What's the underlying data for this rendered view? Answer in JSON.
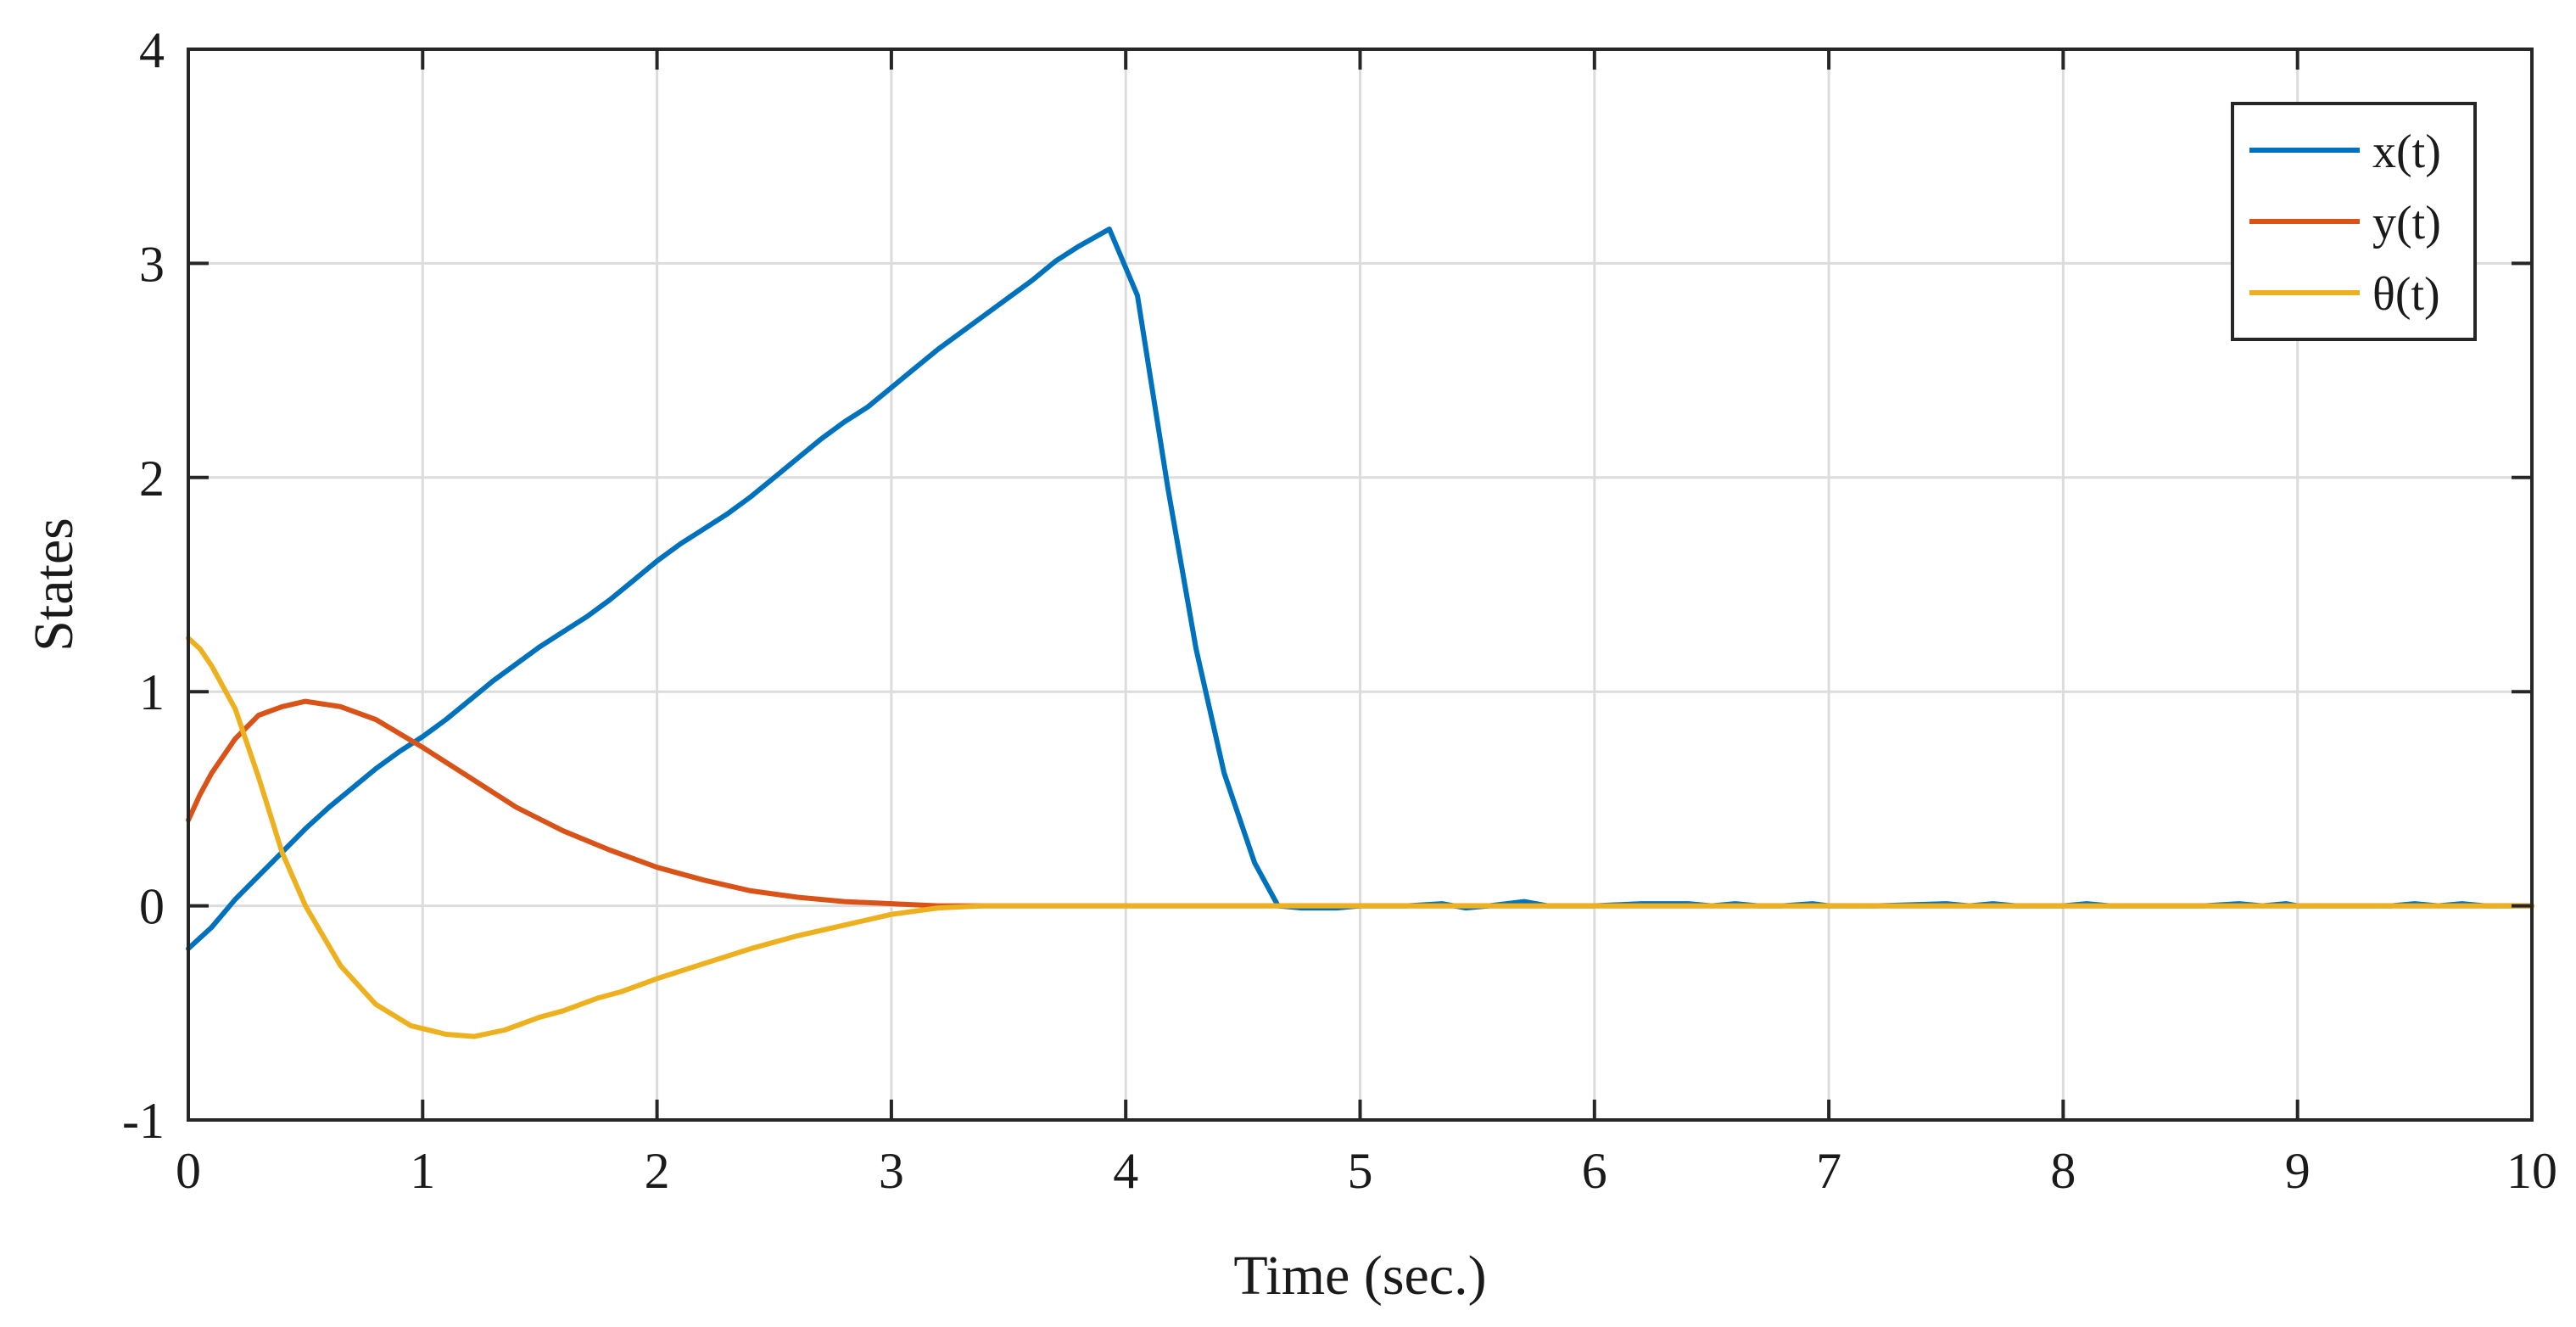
{
  "chart_data": {
    "type": "line",
    "xlabel": "Time (sec.)",
    "ylabel": "States",
    "xlim": [
      0,
      10
    ],
    "ylim": [
      -1,
      4
    ],
    "xticks": [
      0,
      1,
      2,
      3,
      4,
      5,
      6,
      7,
      8,
      9,
      10
    ],
    "yticks": [
      -1,
      0,
      1,
      2,
      3,
      4
    ],
    "xtick_labels": [
      "0",
      "1",
      "2",
      "3",
      "4",
      "5",
      "6",
      "7",
      "8",
      "9",
      "10"
    ],
    "ytick_labels": [
      "-1",
      "0",
      "1",
      "2",
      "3",
      "4"
    ],
    "grid": true,
    "legend_position": "top-right",
    "series": [
      {
        "name": "x(t)",
        "color": "#0072BD",
        "x": [
          0,
          0.1,
          0.2,
          0.3,
          0.4,
          0.5,
          0.6,
          0.7,
          0.8,
          0.9,
          1.0,
          1.1,
          1.2,
          1.3,
          1.4,
          1.5,
          1.6,
          1.7,
          1.8,
          1.9,
          2.0,
          2.1,
          2.2,
          2.3,
          2.4,
          2.5,
          2.6,
          2.7,
          2.8,
          2.9,
          3.0,
          3.1,
          3.2,
          3.3,
          3.4,
          3.5,
          3.6,
          3.7,
          3.8,
          3.93,
          4.05,
          4.18,
          4.3,
          4.42,
          4.55,
          4.65,
          4.75,
          4.9,
          5.0,
          5.2,
          5.35,
          5.45,
          5.55,
          5.7,
          5.8,
          6.0,
          6.2,
          6.3,
          6.4,
          6.5,
          6.6,
          6.7,
          6.8,
          6.93,
          7.0,
          7.2,
          7.5,
          7.6,
          7.7,
          7.8,
          8.0,
          8.1,
          8.2,
          8.4,
          8.6,
          8.75,
          8.85,
          8.95,
          9.0,
          9.2,
          9.4,
          9.5,
          9.6,
          9.7,
          9.8,
          10.0
        ],
        "y": [
          -0.2,
          -0.1,
          0.03,
          0.14,
          0.25,
          0.36,
          0.46,
          0.55,
          0.64,
          0.72,
          0.79,
          0.87,
          0.96,
          1.05,
          1.13,
          1.21,
          1.28,
          1.35,
          1.43,
          1.52,
          1.61,
          1.69,
          1.76,
          1.83,
          1.91,
          2.0,
          2.09,
          2.18,
          2.26,
          2.33,
          2.42,
          2.51,
          2.6,
          2.68,
          2.76,
          2.84,
          2.92,
          3.01,
          3.08,
          3.16,
          2.85,
          1.95,
          1.2,
          0.62,
          0.2,
          0.0,
          -0.01,
          -0.01,
          0.0,
          0.0,
          0.01,
          -0.01,
          0.0,
          0.02,
          0.0,
          0.0,
          0.01,
          0.01,
          0.01,
          0.0,
          0.01,
          0.0,
          0.0,
          0.01,
          0.0,
          0.0,
          0.01,
          0.0,
          0.01,
          0.0,
          0.0,
          0.01,
          0.0,
          0.0,
          0.0,
          0.01,
          0.0,
          0.01,
          0.0,
          0.0,
          0.0,
          0.01,
          0.0,
          0.01,
          0.0,
          0.0
        ]
      },
      {
        "name": "y(t)",
        "color": "#D95319",
        "x": [
          0,
          0.05,
          0.1,
          0.2,
          0.3,
          0.4,
          0.5,
          0.65,
          0.8,
          1.0,
          1.2,
          1.4,
          1.6,
          1.8,
          2.0,
          2.2,
          2.4,
          2.6,
          2.8,
          3.0,
          3.2,
          3.4,
          3.6,
          4.0,
          5.0,
          6.0,
          7.0,
          8.0,
          9.0,
          10.0
        ],
        "y": [
          0.4,
          0.52,
          0.62,
          0.78,
          0.89,
          0.93,
          0.955,
          0.93,
          0.87,
          0.74,
          0.6,
          0.46,
          0.35,
          0.26,
          0.18,
          0.12,
          0.07,
          0.04,
          0.02,
          0.01,
          0.0,
          0.0,
          0.0,
          0.0,
          0.0,
          0.0,
          0.0,
          0.0,
          0.0,
          0.0
        ]
      },
      {
        "name": "θ(t)",
        "color": "#EDB120",
        "x": [
          0,
          0.05,
          0.1,
          0.2,
          0.3,
          0.4,
          0.5,
          0.65,
          0.8,
          0.95,
          1.1,
          1.22,
          1.35,
          1.5,
          1.6,
          1.75,
          1.85,
          2.0,
          2.2,
          2.4,
          2.6,
          2.8,
          3.0,
          3.2,
          3.4,
          3.6,
          4.0,
          5.0,
          6.0,
          7.0,
          8.0,
          9.0,
          10.0
        ],
        "y": [
          1.25,
          1.2,
          1.12,
          0.92,
          0.6,
          0.25,
          0.0,
          -0.28,
          -0.46,
          -0.56,
          -0.6,
          -0.61,
          -0.58,
          -0.52,
          -0.49,
          -0.43,
          -0.4,
          -0.34,
          -0.27,
          -0.2,
          -0.14,
          -0.09,
          -0.04,
          -0.01,
          0.0,
          0.0,
          0.0,
          0.0,
          0.0,
          0.0,
          0.0,
          0.0,
          0.0
        ]
      }
    ]
  }
}
